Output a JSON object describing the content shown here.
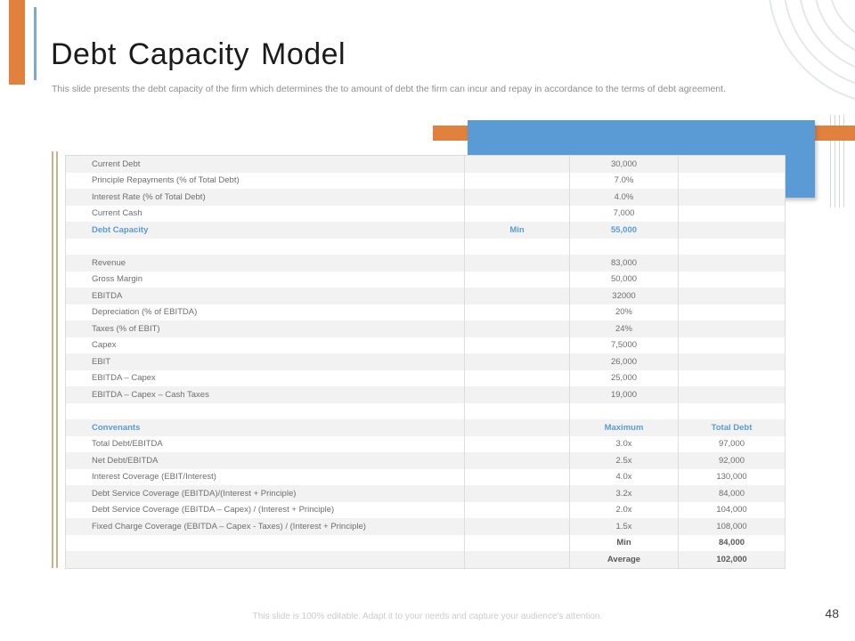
{
  "slide": {
    "title": "Debt Capacity Model",
    "subtitle": "This slide presents the debt capacity of the firm which determines the to amount of debt the firm can incur and repay in accordance to the terms of debt agreement.",
    "footer": "This slide is 100% editable. Adapt it to your needs and capture your audience's attention.",
    "page_number": "48"
  },
  "colors": {
    "accent_orange": "#e0813e",
    "accent_blue": "#5b9bd5",
    "accent_blue_muted": "#7fa8c9",
    "stripe_gray": "#f2f2f2",
    "text_gray": "#6e6e6e"
  },
  "table": {
    "rows": [
      {
        "label": "Current Debt",
        "c2": "",
        "c3": "30,000",
        "c4": "",
        "style": ""
      },
      {
        "label": "Principle Repayments (% of Total Debt)",
        "c2": "",
        "c3": "7.0%",
        "c4": "",
        "style": ""
      },
      {
        "label": "Interest Rate (% of Total Debt)",
        "c2": "",
        "c3": "4.0%",
        "c4": "",
        "style": ""
      },
      {
        "label": "Current Cash",
        "c2": "",
        "c3": "7,000",
        "c4": "",
        "style": ""
      },
      {
        "label": "Debt Capacity",
        "c2": "Min",
        "c3": "55,000",
        "c4": "",
        "style": "accent"
      },
      {
        "label": "",
        "c2": "",
        "c3": "",
        "c4": "",
        "style": ""
      },
      {
        "label": "Revenue",
        "c2": "",
        "c3": "83,000",
        "c4": "",
        "style": ""
      },
      {
        "label": "Gross Margin",
        "c2": "",
        "c3": "50,000",
        "c4": "",
        "style": ""
      },
      {
        "label": "EBITDA",
        "c2": "",
        "c3": "32000",
        "c4": "",
        "style": ""
      },
      {
        "label": "Depreciation (% of EBITDA)",
        "c2": "",
        "c3": "20%",
        "c4": "",
        "style": ""
      },
      {
        "label": "Taxes (% of EBIT)",
        "c2": "",
        "c3": "24%",
        "c4": "",
        "style": ""
      },
      {
        "label": "Capex",
        "c2": "",
        "c3": "7,5000",
        "c4": "",
        "style": ""
      },
      {
        "label": "EBIT",
        "c2": "",
        "c3": "26,000",
        "c4": "",
        "style": ""
      },
      {
        "label": "EBITDA – Capex",
        "c2": "",
        "c3": "25,000",
        "c4": "",
        "style": ""
      },
      {
        "label": "EBITDA – Capex – Cash Taxes",
        "c2": "",
        "c3": "19,000",
        "c4": "",
        "style": ""
      },
      {
        "label": "",
        "c2": "",
        "c3": "",
        "c4": "",
        "style": ""
      },
      {
        "label": "Convenants",
        "c2": "",
        "c3": "Maximum",
        "c4": "Total Debt",
        "style": "accent"
      },
      {
        "label": "Total Debt/EBITDA",
        "c2": "",
        "c3": "3.0x",
        "c4": "97,000",
        "style": ""
      },
      {
        "label": "Net Debt/EBITDA",
        "c2": "",
        "c3": "2.5x",
        "c4": "92,000",
        "style": ""
      },
      {
        "label": "Interest Coverage (EBIT/Interest)",
        "c2": "",
        "c3": "4.0x",
        "c4": "130,000",
        "style": ""
      },
      {
        "label": "Debt Service Coverage (EBITDA)/(Interest + Principle)",
        "c2": "",
        "c3": "3.2x",
        "c4": "84,000",
        "style": ""
      },
      {
        "label": "Debt Service Coverage (EBITDA – Capex) / (Interest + Principle)",
        "c2": "",
        "c3": "2.0x",
        "c4": "104,000",
        "style": ""
      },
      {
        "label": "Fixed Charge Coverage (EBITDA – Capex - Taxes) / (Interest + Principle)",
        "c2": "",
        "c3": "1.5x",
        "c4": "108,000",
        "style": ""
      },
      {
        "label": "",
        "c2": "",
        "c3": "Min",
        "c4": "84,000",
        "style": "strong"
      },
      {
        "label": "",
        "c2": "",
        "c3": "Average",
        "c4": "102,000",
        "style": "strong"
      }
    ]
  }
}
